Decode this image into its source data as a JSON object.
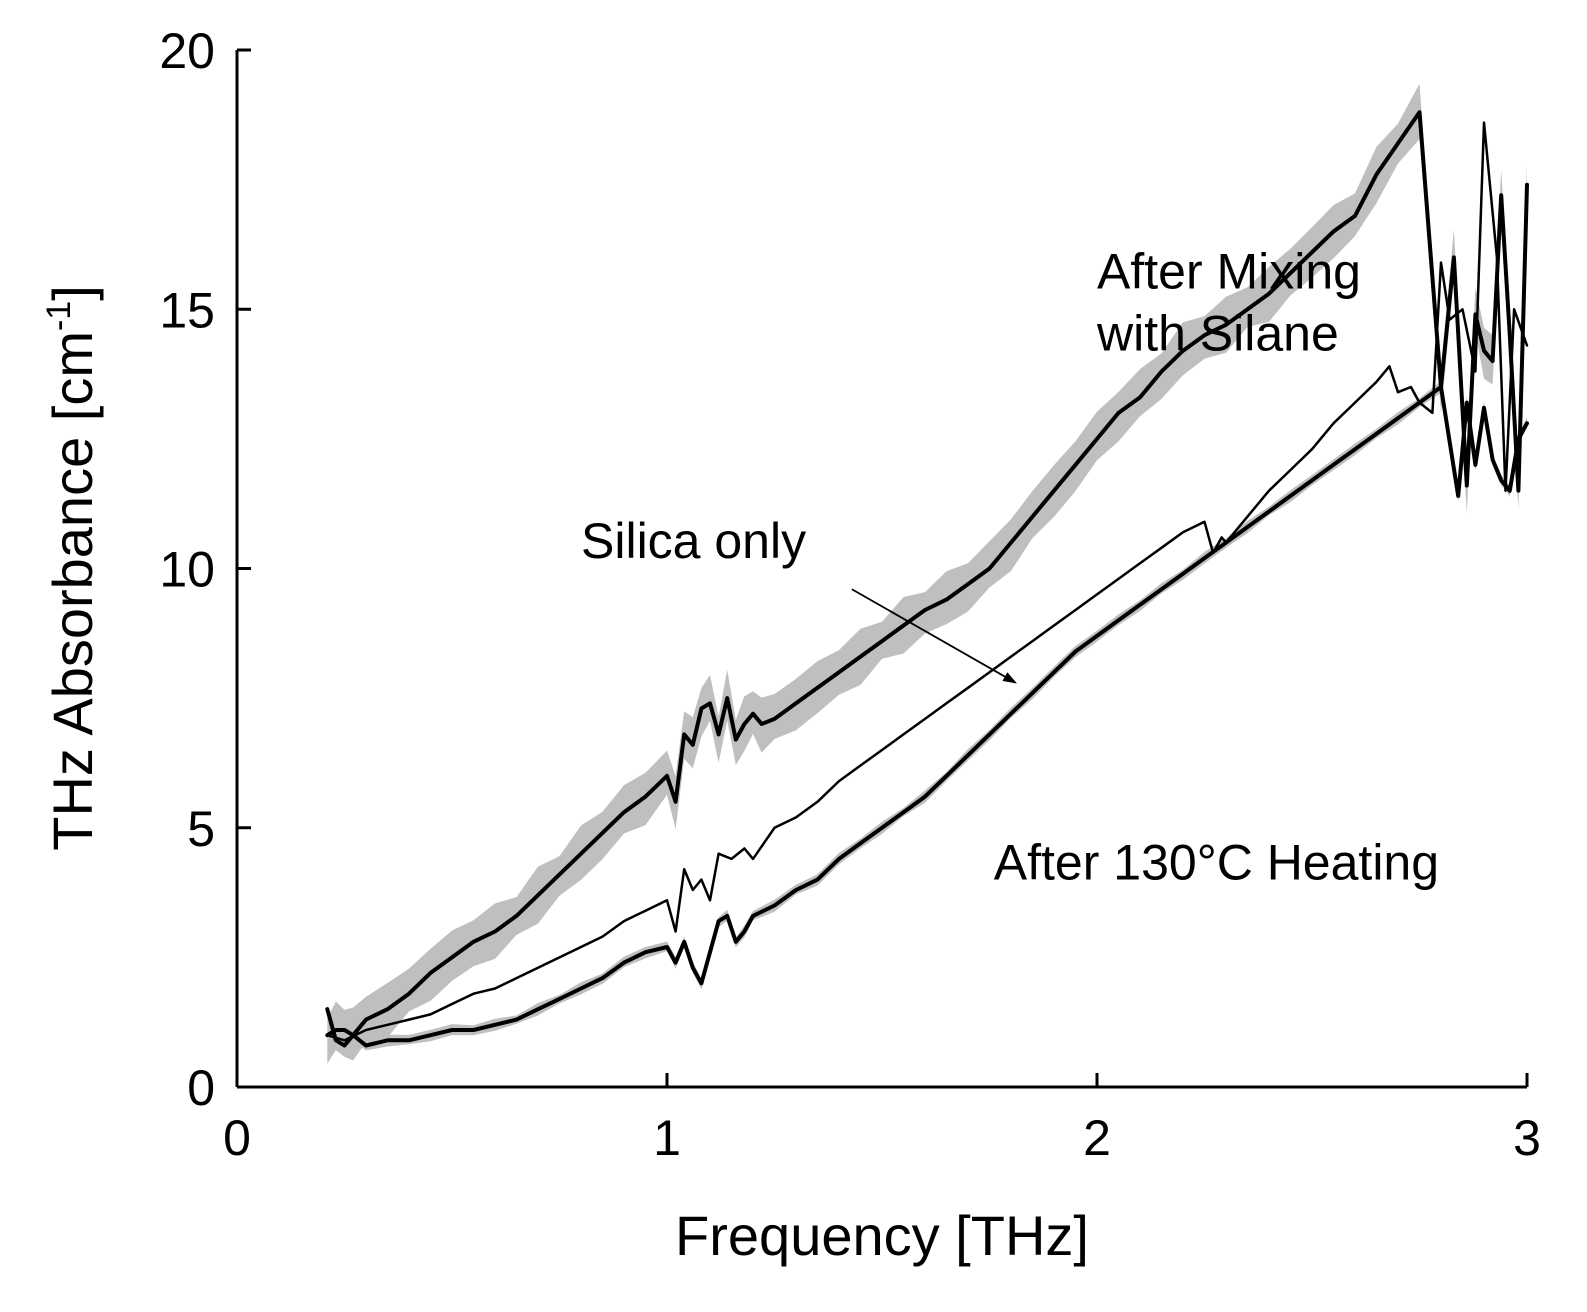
{
  "chart_data": {
    "type": "line",
    "title": "",
    "xlabel": "Frequency [THz]",
    "ylabel_main": "THz Absorbance [cm",
    "ylabel_sup": "-1",
    "ylabel_end": "]",
    "xlim": [
      0,
      3
    ],
    "ylim": [
      0,
      20
    ],
    "xticks": [
      0,
      1,
      2,
      3
    ],
    "xtick_labels": [
      "0",
      "1",
      "2",
      "3"
    ],
    "yticks": [
      0,
      5,
      10,
      15,
      20
    ],
    "ytick_labels": [
      "0",
      "5",
      "10",
      "15",
      "20"
    ],
    "grid": false,
    "band_color": "#bfbfbf",
    "line_color": "#000000",
    "series": [
      {
        "name": "After Mixing with Silane",
        "style": "thick",
        "band": 0.55,
        "x": [
          0.21,
          0.23,
          0.25,
          0.27,
          0.3,
          0.35,
          0.4,
          0.45,
          0.5,
          0.55,
          0.6,
          0.65,
          0.7,
          0.75,
          0.8,
          0.85,
          0.9,
          0.95,
          1.0,
          1.02,
          1.04,
          1.06,
          1.08,
          1.1,
          1.12,
          1.14,
          1.16,
          1.18,
          1.2,
          1.22,
          1.25,
          1.3,
          1.35,
          1.4,
          1.45,
          1.5,
          1.55,
          1.6,
          1.65,
          1.7,
          1.75,
          1.8,
          1.85,
          1.9,
          1.95,
          2.0,
          2.05,
          2.1,
          2.15,
          2.2,
          2.25,
          2.3,
          2.35,
          2.4,
          2.45,
          2.5,
          2.55,
          2.6,
          2.65,
          2.7,
          2.75,
          2.8,
          2.83,
          2.86,
          2.88,
          2.9,
          2.92,
          2.94,
          2.96,
          2.98,
          3.0
        ],
        "y": [
          1.0,
          1.1,
          1.1,
          1.0,
          1.3,
          1.5,
          1.8,
          2.2,
          2.5,
          2.8,
          3.0,
          3.3,
          3.7,
          4.1,
          4.5,
          4.9,
          5.3,
          5.6,
          6.0,
          5.5,
          6.8,
          6.6,
          7.3,
          7.4,
          6.8,
          7.5,
          6.7,
          7.0,
          7.2,
          7.0,
          7.1,
          7.4,
          7.7,
          8.0,
          8.3,
          8.6,
          8.9,
          9.2,
          9.4,
          9.7,
          10.0,
          10.5,
          11.0,
          11.5,
          12.0,
          12.5,
          13.0,
          13.3,
          13.8,
          14.2,
          14.5,
          14.7,
          15.0,
          15.3,
          15.7,
          16.1,
          16.5,
          16.8,
          17.6,
          18.2,
          18.8,
          13.5,
          16.0,
          11.6,
          14.9,
          14.2,
          14.0,
          17.2,
          14.5,
          11.5,
          17.4
        ]
      },
      {
        "name": "Silica only",
        "style": "thin",
        "band": 0,
        "x": [
          0.21,
          0.25,
          0.3,
          0.35,
          0.4,
          0.45,
          0.5,
          0.55,
          0.6,
          0.65,
          0.7,
          0.75,
          0.8,
          0.85,
          0.9,
          0.95,
          1.0,
          1.02,
          1.04,
          1.06,
          1.08,
          1.1,
          1.12,
          1.15,
          1.18,
          1.2,
          1.25,
          1.3,
          1.35,
          1.4,
          1.45,
          1.5,
          1.55,
          1.6,
          1.65,
          1.7,
          1.75,
          1.8,
          1.85,
          1.9,
          1.95,
          2.0,
          2.05,
          2.1,
          2.15,
          2.2,
          2.25,
          2.27,
          2.29,
          2.3,
          2.35,
          2.4,
          2.45,
          2.5,
          2.55,
          2.6,
          2.65,
          2.68,
          2.7,
          2.73,
          2.75,
          2.78,
          2.8,
          2.82,
          2.85,
          2.88,
          2.9,
          2.93,
          2.95,
          2.97,
          3.0
        ],
        "y": [
          1.0,
          0.9,
          1.1,
          1.2,
          1.3,
          1.4,
          1.6,
          1.8,
          1.9,
          2.1,
          2.3,
          2.5,
          2.7,
          2.9,
          3.2,
          3.4,
          3.6,
          3.0,
          4.2,
          3.8,
          4.0,
          3.6,
          4.5,
          4.4,
          4.6,
          4.4,
          5.0,
          5.2,
          5.5,
          5.9,
          6.2,
          6.5,
          6.8,
          7.1,
          7.4,
          7.7,
          8.0,
          8.3,
          8.6,
          8.9,
          9.2,
          9.5,
          9.8,
          10.1,
          10.4,
          10.7,
          10.9,
          10.3,
          10.6,
          10.5,
          11.0,
          11.5,
          11.9,
          12.3,
          12.8,
          13.2,
          13.6,
          13.9,
          13.4,
          13.5,
          13.2,
          13.0,
          15.9,
          14.8,
          15.0,
          13.8,
          18.6,
          16.0,
          11.5,
          15.0,
          14.3
        ]
      },
      {
        "name": "After 130°C Heating",
        "style": "thick",
        "band": 0.12,
        "x": [
          0.21,
          0.23,
          0.25,
          0.27,
          0.3,
          0.35,
          0.4,
          0.45,
          0.5,
          0.55,
          0.6,
          0.65,
          0.7,
          0.75,
          0.8,
          0.85,
          0.9,
          0.95,
          1.0,
          1.02,
          1.04,
          1.06,
          1.08,
          1.1,
          1.12,
          1.14,
          1.16,
          1.18,
          1.2,
          1.25,
          1.3,
          1.35,
          1.4,
          1.45,
          1.5,
          1.55,
          1.6,
          1.65,
          1.7,
          1.75,
          1.8,
          1.85,
          1.9,
          1.95,
          2.0,
          2.05,
          2.1,
          2.15,
          2.2,
          2.25,
          2.3,
          2.35,
          2.4,
          2.45,
          2.5,
          2.55,
          2.6,
          2.65,
          2.7,
          2.75,
          2.8,
          2.84,
          2.86,
          2.88,
          2.9,
          2.92,
          2.94,
          2.96,
          2.98,
          3.0
        ],
        "y": [
          1.5,
          0.9,
          0.8,
          1.0,
          0.8,
          0.9,
          0.9,
          1.0,
          1.1,
          1.1,
          1.2,
          1.3,
          1.5,
          1.7,
          1.9,
          2.1,
          2.4,
          2.6,
          2.7,
          2.4,
          2.8,
          2.3,
          2.0,
          2.6,
          3.2,
          3.3,
          2.8,
          3.0,
          3.3,
          3.5,
          3.8,
          4.0,
          4.4,
          4.7,
          5.0,
          5.3,
          5.6,
          6.0,
          6.4,
          6.8,
          7.2,
          7.6,
          8.0,
          8.4,
          8.7,
          9.0,
          9.3,
          9.6,
          9.9,
          10.2,
          10.5,
          10.8,
          11.1,
          11.4,
          11.7,
          12.0,
          12.3,
          12.6,
          12.9,
          13.2,
          13.5,
          11.4,
          13.2,
          12.0,
          13.1,
          12.1,
          11.7,
          11.5,
          12.5,
          12.8
        ]
      }
    ],
    "annotations": [
      {
        "lines": [
          "After Mixing",
          "with Silane"
        ],
        "x": 2.0,
        "y": 15.4,
        "series": "After Mixing with Silane"
      },
      {
        "lines": [
          "Silica only"
        ],
        "x": 0.8,
        "y": 10.2,
        "series": "Silica only",
        "arrow_from": [
          1.43,
          9.6
        ],
        "arrow_to": [
          1.81,
          7.8
        ]
      },
      {
        "lines": [
          "After 130°C Heating"
        ],
        "x": 1.76,
        "y": 4.0,
        "series": "After 130°C Heating"
      }
    ]
  }
}
